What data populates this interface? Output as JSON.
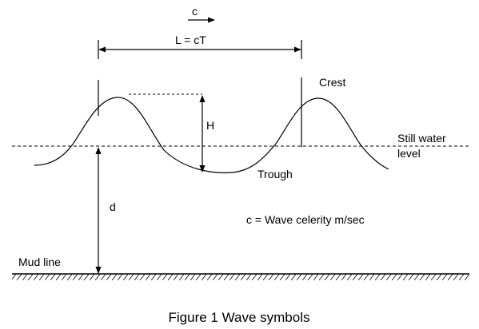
{
  "labels": {
    "celerity_arrow": "c",
    "wavelength": "L = cT",
    "crest": "Crest",
    "height": "H",
    "still_water_line1": "Still water",
    "still_water_line2": "level",
    "trough": "Trough",
    "depth": "d",
    "celerity_def": "c = Wave celerity  m/sec",
    "mud_line": "Mud line"
  },
  "caption": "Figure 1  Wave symbols"
}
